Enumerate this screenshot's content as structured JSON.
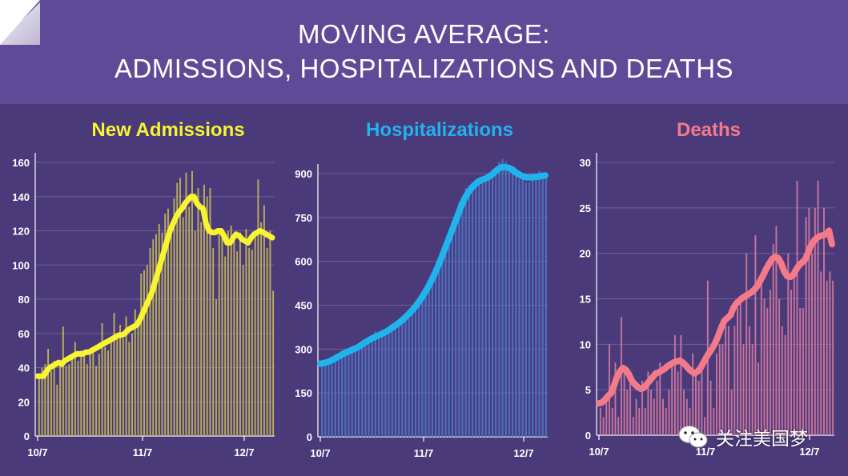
{
  "header": {
    "title_line1": "MOVING AVERAGE:",
    "title_line2": "ADMISSIONS, HOSPITALIZATIONS AND DEATHS"
  },
  "watermark": {
    "text": "关注美国梦",
    "icon": "wechat-icon"
  },
  "colors": {
    "background": "#4a3a7a",
    "header": "#5f4a98",
    "admissions_line": "#f7f530",
    "admissions_bars": "#b9ac5a",
    "hospitalizations_line": "#20b4ee",
    "hospitalizations_bars": "#4d6fc0",
    "deaths_line": "#f47a8a",
    "deaths_bars": "#c7739a"
  },
  "chart_data": [
    {
      "type": "bar",
      "title": "New Admissions",
      "x_tick_labels": [
        "10/7",
        "11/7",
        "12/7"
      ],
      "ylim": [
        0,
        160
      ],
      "yticks": [
        0,
        20,
        40,
        60,
        80,
        100,
        120,
        140,
        160
      ],
      "grid": true,
      "series": [
        {
          "kind": "bar",
          "values": [
            35,
            40,
            42,
            51,
            38,
            44,
            30,
            42,
            64,
            41,
            42,
            47,
            55,
            44,
            50,
            47,
            42,
            48,
            52,
            41,
            48,
            66,
            52,
            50,
            55,
            72,
            58,
            65,
            57,
            70,
            55,
            60,
            74,
            66,
            95,
            97,
            100,
            110,
            115,
            118,
            124,
            119,
            130,
            133,
            125,
            139,
            148,
            151,
            128,
            154,
            134,
            155,
            120,
            145,
            125,
            147,
            140,
            145,
            110,
            80,
            120,
            118,
            105,
            120,
            123,
            115,
            108,
            119,
            100,
            121,
            110,
            109,
            120,
            150,
            125,
            135,
            110,
            120,
            85
          ]
        },
        {
          "kind": "line",
          "values": [
            35,
            35,
            35,
            38,
            40,
            41,
            42,
            43,
            42,
            44,
            45,
            46,
            47,
            48,
            48,
            48,
            49,
            49,
            50,
            51,
            52,
            53,
            54,
            55,
            56,
            57,
            58,
            59,
            59,
            60,
            62,
            63,
            64,
            65,
            68,
            72,
            76,
            80,
            84,
            90,
            96,
            102,
            108,
            114,
            120,
            124,
            128,
            131,
            133,
            136,
            138,
            140,
            140,
            136,
            134,
            133,
            124,
            120,
            119,
            119,
            120,
            120,
            117,
            113,
            113,
            116,
            118,
            117,
            115,
            114,
            113,
            116,
            118,
            119,
            120,
            119,
            118,
            117,
            116
          ]
        }
      ]
    },
    {
      "type": "bar",
      "title": "Hospitalizations",
      "x_tick_labels": [
        "10/7",
        "11/7",
        "12/7"
      ],
      "ylim": [
        0,
        900
      ],
      "yticks": [
        0,
        150,
        300,
        450,
        600,
        750,
        900
      ],
      "grid": true,
      "series": [
        {
          "kind": "bar",
          "values": [
            260,
            255,
            265,
            270,
            268,
            280,
            285,
            290,
            300,
            310,
            300,
            320,
            318,
            325,
            330,
            340,
            360,
            350,
            355,
            350,
            370,
            380,
            385,
            395,
            400,
            410,
            405,
            420,
            440,
            470,
            480,
            500,
            520,
            540,
            560,
            600,
            650,
            660,
            700,
            720,
            760,
            800,
            810,
            850,
            860,
            870,
            880,
            880,
            890,
            895,
            900,
            905,
            920,
            940,
            950,
            940,
            930,
            920,
            910,
            880,
            880,
            870,
            870,
            880,
            900,
            910,
            890,
            900
          ]
        },
        {
          "kind": "line",
          "values": [
            250,
            252,
            255,
            260,
            265,
            272,
            278,
            285,
            290,
            295,
            300,
            305,
            312,
            320,
            327,
            334,
            340,
            345,
            350,
            356,
            362,
            370,
            378,
            386,
            395,
            405,
            416,
            428,
            441,
            456,
            472,
            490,
            510,
            532,
            556,
            582,
            610,
            640,
            670,
            700,
            730,
            760,
            790,
            815,
            835,
            850,
            862,
            872,
            878,
            882,
            888,
            896,
            906,
            916,
            922,
            922,
            920,
            915,
            906,
            898,
            892,
            888,
            887,
            887,
            888,
            890,
            892,
            894
          ]
        }
      ]
    },
    {
      "type": "bar",
      "title": "Deaths",
      "x_tick_labels": [
        "10/7",
        "11/7",
        "12/7"
      ],
      "ylim": [
        0,
        30
      ],
      "yticks": [
        0,
        5,
        10,
        15,
        20,
        25,
        30
      ],
      "grid": true,
      "series": [
        {
          "kind": "bar",
          "values": [
            3,
            2,
            4,
            10,
            3,
            8,
            2,
            13,
            7,
            5,
            7,
            2,
            4,
            3,
            6,
            3,
            7,
            5,
            4,
            6,
            8,
            4,
            3,
            5,
            8,
            11,
            7,
            11,
            5,
            4,
            3,
            9,
            7,
            6,
            8,
            2,
            17,
            6,
            3,
            9,
            10,
            10,
            12,
            12,
            5,
            12,
            14,
            15,
            10,
            20,
            12,
            10,
            22,
            8,
            17,
            15,
            14,
            16,
            21,
            23,
            15,
            12,
            11,
            20,
            16,
            18,
            28,
            14,
            14,
            24,
            25,
            20,
            25,
            28,
            18,
            25,
            17,
            18,
            17
          ]
        },
        {
          "kind": "line",
          "values": [
            3.5,
            3.6,
            3.9,
            4.3,
            4.6,
            5.4,
            6.4,
            7.0,
            7.4,
            7.2,
            6.7,
            6.0,
            5.6,
            5.3,
            5.1,
            5.2,
            5.6,
            6.0,
            6.4,
            6.8,
            6.9,
            7.1,
            7.3,
            7.6,
            7.8,
            8.0,
            8.1,
            8.2,
            8.0,
            7.7,
            7.3,
            7.0,
            6.8,
            7.0,
            7.4,
            8.0,
            8.6,
            9.1,
            9.6,
            10.2,
            11.0,
            11.9,
            12.6,
            12.9,
            13.2,
            14.0,
            14.5,
            14.8,
            15.1,
            15.3,
            15.5,
            15.7,
            16.0,
            16.4,
            17.0,
            17.6,
            18.3,
            18.9,
            19.4,
            19.6,
            19.5,
            18.9,
            18.0,
            17.5,
            17.4,
            17.6,
            18.2,
            18.7,
            19.0,
            19.3,
            20.1,
            20.9,
            21.4,
            21.7,
            21.9,
            22.0,
            22.1,
            22.5,
            21.0
          ]
        }
      ]
    }
  ]
}
